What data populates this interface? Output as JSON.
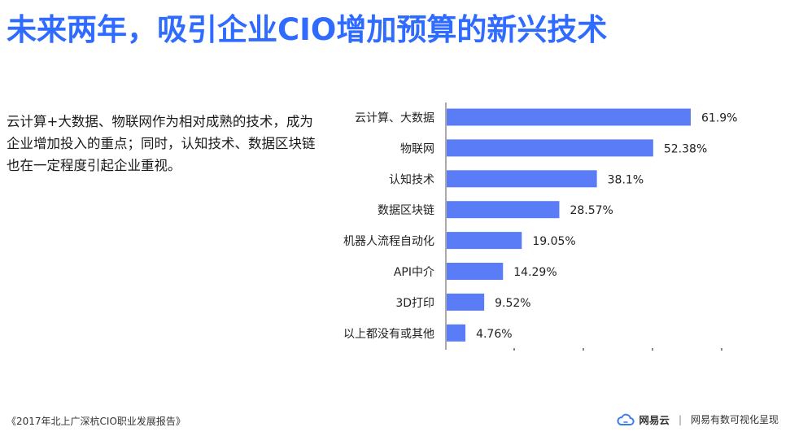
{
  "page": {
    "title": "未来两年，吸引企业CIO增加预算的新兴技术",
    "description": "云计算+大数据、物联网作为相对成熟的技术，成为企业增加投入的重点；同时，认知技术、数据区块链也在一定程度引起企业重视。"
  },
  "chart_data": {
    "type": "bar",
    "orientation": "horizontal",
    "categories": [
      "云计算、大数据",
      "物联网",
      "认知技术",
      "数据区块链",
      "机器人流程自动化",
      "API中介",
      "3D打印",
      "以上都没有或其他"
    ],
    "values": [
      61.9,
      52.38,
      38.1,
      28.57,
      19.05,
      14.29,
      9.52,
      4.76
    ],
    "value_labels": [
      "61.9%",
      "52.38%",
      "38.1%",
      "28.57%",
      "19.05%",
      "14.29%",
      "9.52%",
      "4.76%"
    ],
    "xlim": [
      0,
      70
    ],
    "bar_color": "#5b7cf7",
    "grid": false
  },
  "footer": {
    "source": "《2017年北上广深杭CIO职业发展报告》",
    "brand": "网易云",
    "separator": "|",
    "tagline": "网易有数可视化呈现"
  }
}
